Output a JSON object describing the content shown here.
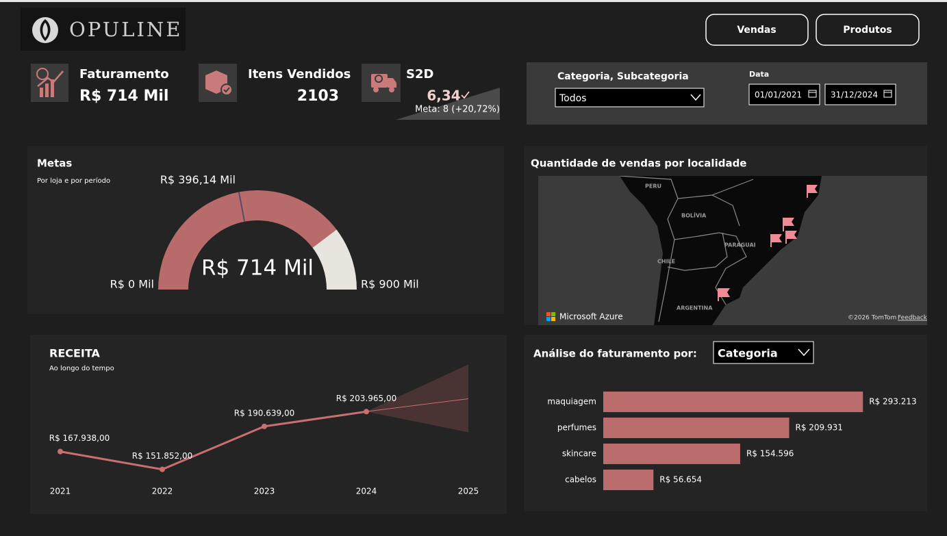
{
  "header": {
    "logo": "OPULINE",
    "buttons": [
      "Vendas",
      "Produtos"
    ]
  },
  "kpis": [
    {
      "title": "Faturamento",
      "value": "R$ 714 Mil"
    },
    {
      "title": "Itens Vendidos",
      "value": "2103"
    },
    {
      "title": "S2D",
      "value": "6,34",
      "note": "Meta: 8 (+20,72%)"
    }
  ],
  "filters": {
    "category_label": "Categoria, Subcategoria",
    "category_value": "Todos",
    "date_label": "Data",
    "start": "01/01/2021",
    "end": "31/12/2024"
  },
  "map": {
    "title": "Quantidade de vendas por localidade",
    "labels": [
      "PERU",
      "BOLÍVIA",
      "PARAGUAI",
      "CHILE",
      "ARGENTINA"
    ],
    "brand": "Microsoft Azure",
    "copyright": "©2026 TomTom",
    "feedback": "Feedback"
  },
  "chart_data": [
    {
      "type": "gauge",
      "title": "Metas",
      "subtitle": "Por loja e por período",
      "value": 714,
      "value_label": "R$ 714 Mil",
      "target": 396.14,
      "target_label": "R$ 396,14 Mil",
      "ylim": [
        0,
        900
      ],
      "yticks": [
        {
          "value": 0,
          "label": "R$ 0 Mil"
        },
        {
          "value": 900,
          "label": "R$ 900 Mil"
        }
      ],
      "color": "#b86b6b",
      "rest_color": "#e8e4de",
      "target_color": "#5a4a6a"
    },
    {
      "type": "line",
      "title": "RECEITA",
      "subtitle": "Ao longo do tempo",
      "x": [
        2021,
        2022,
        2023,
        2024,
        2025
      ],
      "values": [
        167938,
        151852,
        190639,
        203965,
        null
      ],
      "value_labels": [
        "R$ 167.938,00",
        "R$ 151.852,00",
        "R$ 190.639,00",
        "R$ 203.965,00",
        null
      ],
      "forecast_x": [
        2024,
        2025
      ],
      "forecast_values": [
        203965,
        215600
      ],
      "forecast_upper": [
        203965,
        246500
      ],
      "forecast_lower": [
        203965,
        185300
      ],
      "xlim": [
        2021,
        2025
      ],
      "xticks": [
        2021,
        2022,
        2023,
        2024,
        2025
      ],
      "ylim": [
        143000,
        248000
      ],
      "color": "#c87070",
      "forecast_color": "#4a3333"
    },
    {
      "type": "hbar",
      "title": "Análise do faturamento  por:",
      "dropdown": "Categoria",
      "categories": [
        "maquiagem",
        "perfumes",
        "skincare",
        "cabelos"
      ],
      "values": [
        293213,
        209931,
        154596,
        56654
      ],
      "value_labels": [
        "R$ 293.213",
        "R$ 209.931",
        "R$ 154.596",
        "R$ 56.654"
      ],
      "xlim": [
        0,
        300000
      ],
      "color": "#bb6d6d"
    }
  ]
}
